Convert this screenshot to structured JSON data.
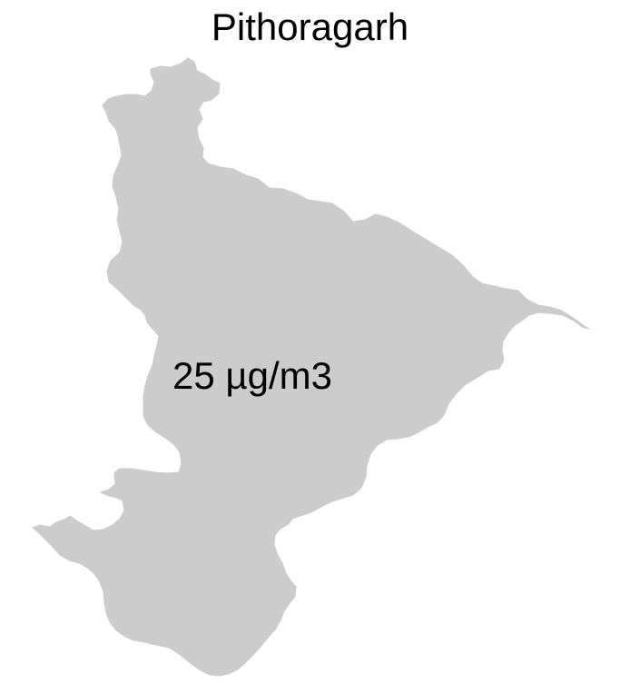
{
  "map": {
    "title": "Pithoragarh",
    "region": {
      "name": "Pithoragarh",
      "value_label": "25 µg/m3",
      "fill_color": "#cccccc"
    },
    "background_color": "#ffffff"
  }
}
